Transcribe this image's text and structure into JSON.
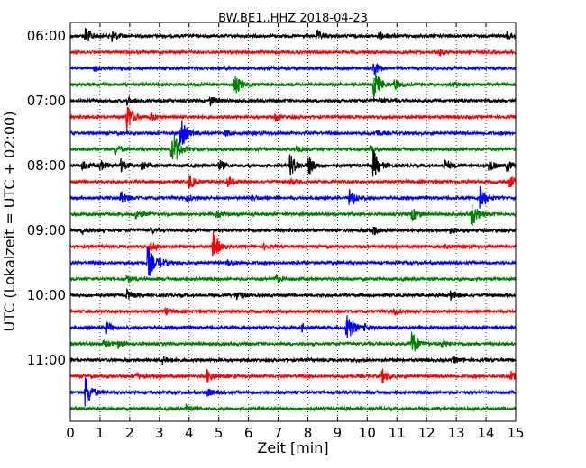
{
  "chart_data": {
    "type": "line",
    "title": "BW.BE1..HHZ 2018-04-23",
    "xlabel": "Zeit  [min]",
    "ylabel": "UTC (Lokalzeit = UTC + 02:00)",
    "xlim": [
      0,
      15
    ],
    "x_ticks": [
      "0",
      "1",
      "2",
      "3",
      "4",
      "5",
      "6",
      "7",
      "8",
      "9",
      "10",
      "11",
      "12",
      "13",
      "14",
      "15"
    ],
    "y_tick_labels": [
      "06:00",
      "07:00",
      "08:00",
      "09:00",
      "10:00",
      "11:00"
    ],
    "grid": "vertical dotted",
    "trace_colors": [
      "#000000",
      "#ff0000",
      "#0000ff",
      "#008000"
    ],
    "trace_interval_minutes": 15,
    "start_time": "06:00",
    "traces": [
      {
        "start": "06:00",
        "events": [
          [
            0.5,
            0.45
          ],
          [
            1.4,
            0.3
          ],
          [
            8.3,
            0.25
          ],
          [
            10.4,
            0.2
          ],
          [
            14.7,
            0.2
          ]
        ]
      },
      {
        "start": "06:15",
        "events": [
          [
            12.4,
            0.15
          ]
        ]
      },
      {
        "start": "06:30",
        "events": [
          [
            0.8,
            0.12
          ],
          [
            10.2,
            0.4
          ]
        ]
      },
      {
        "start": "06:45",
        "events": [
          [
            5.5,
            0.75
          ],
          [
            10.2,
            1.0
          ],
          [
            10.9,
            0.3
          ],
          [
            12.9,
            0.15
          ]
        ]
      },
      {
        "start": "07:00",
        "events": [
          [
            1.9,
            0.2
          ],
          [
            4.7,
            0.25
          ],
          [
            10.4,
            0.15
          ]
        ]
      },
      {
        "start": "07:15",
        "events": [
          [
            1.9,
            0.85
          ],
          [
            2.7,
            0.2
          ],
          [
            6.9,
            0.2
          ]
        ]
      },
      {
        "start": "07:30",
        "events": [
          [
            3.7,
            0.9
          ],
          [
            5.2,
            0.15
          ],
          [
            10.3,
            0.15
          ]
        ]
      },
      {
        "start": "07:45",
        "events": [
          [
            1.5,
            0.25
          ],
          [
            3.4,
            0.6
          ],
          [
            3.5,
            0.5
          ],
          [
            7.6,
            0.15
          ],
          [
            10.1,
            0.15
          ]
        ]
      },
      {
        "start": "08:00",
        "events": [
          [
            0.4,
            0.25
          ],
          [
            1.0,
            0.25
          ],
          [
            1.7,
            0.3
          ],
          [
            2.4,
            0.3
          ],
          [
            5.0,
            0.3
          ],
          [
            7.4,
            0.65
          ],
          [
            8.0,
            0.55
          ],
          [
            10.2,
            0.8
          ],
          [
            12.6,
            0.3
          ],
          [
            14.1,
            0.3
          ],
          [
            14.7,
            0.3
          ]
        ]
      },
      {
        "start": "08:15",
        "events": [
          [
            4.0,
            0.35
          ],
          [
            5.3,
            0.3
          ],
          [
            7.4,
            0.15
          ],
          [
            14.8,
            0.35
          ]
        ]
      },
      {
        "start": "08:30",
        "events": [
          [
            1.7,
            0.35
          ],
          [
            3.9,
            0.15
          ],
          [
            6.1,
            0.15
          ],
          [
            9.4,
            0.55
          ],
          [
            13.8,
            0.75
          ]
        ]
      },
      {
        "start": "08:45",
        "events": [
          [
            2.2,
            0.25
          ],
          [
            4.9,
            0.15
          ],
          [
            11.5,
            0.35
          ],
          [
            13.5,
            0.75
          ]
        ]
      },
      {
        "start": "09:00",
        "events": [
          [
            0.4,
            0.15
          ],
          [
            2.7,
            0.15
          ],
          [
            10.2,
            0.25
          ],
          [
            12.8,
            0.15
          ]
        ]
      },
      {
        "start": "09:15",
        "events": [
          [
            2.7,
            0.3
          ],
          [
            4.8,
            0.75
          ],
          [
            6.5,
            0.15
          ],
          [
            12.6,
            0.15
          ]
        ]
      },
      {
        "start": "09:30",
        "events": [
          [
            2.6,
            1.0
          ],
          [
            3.0,
            0.2
          ],
          [
            5.3,
            0.15
          ]
        ]
      },
      {
        "start": "09:45",
        "events": [
          [
            1.9,
            0.15
          ],
          [
            6.9,
            0.2
          ]
        ]
      },
      {
        "start": "10:00",
        "events": [
          [
            1.9,
            0.25
          ],
          [
            5.6,
            0.25
          ],
          [
            12.8,
            0.25
          ]
        ]
      },
      {
        "start": "10:15",
        "events": [
          [
            3.2,
            0.15
          ],
          [
            10.9,
            0.15
          ]
        ]
      },
      {
        "start": "10:30",
        "events": [
          [
            1.2,
            0.3
          ],
          [
            7.8,
            0.2
          ],
          [
            9.3,
            1.0
          ],
          [
            9.9,
            0.15
          ]
        ]
      },
      {
        "start": "10:45",
        "events": [
          [
            1.1,
            0.2
          ],
          [
            1.6,
            0.2
          ],
          [
            11.5,
            0.7
          ],
          [
            12.5,
            0.2
          ]
        ]
      },
      {
        "start": "11:00",
        "events": [
          [
            3.1,
            0.2
          ],
          [
            12.9,
            0.15
          ]
        ]
      },
      {
        "start": "11:15",
        "events": [
          [
            2.2,
            0.2
          ],
          [
            4.6,
            0.35
          ],
          [
            10.5,
            0.35
          ],
          [
            14.8,
            0.3
          ]
        ]
      },
      {
        "start": "11:30",
        "events": [
          [
            0.5,
            1.0
          ],
          [
            4.6,
            0.2
          ]
        ]
      },
      {
        "start": "11:45",
        "events": [
          [
            3.9,
            0.2
          ]
        ]
      }
    ]
  }
}
